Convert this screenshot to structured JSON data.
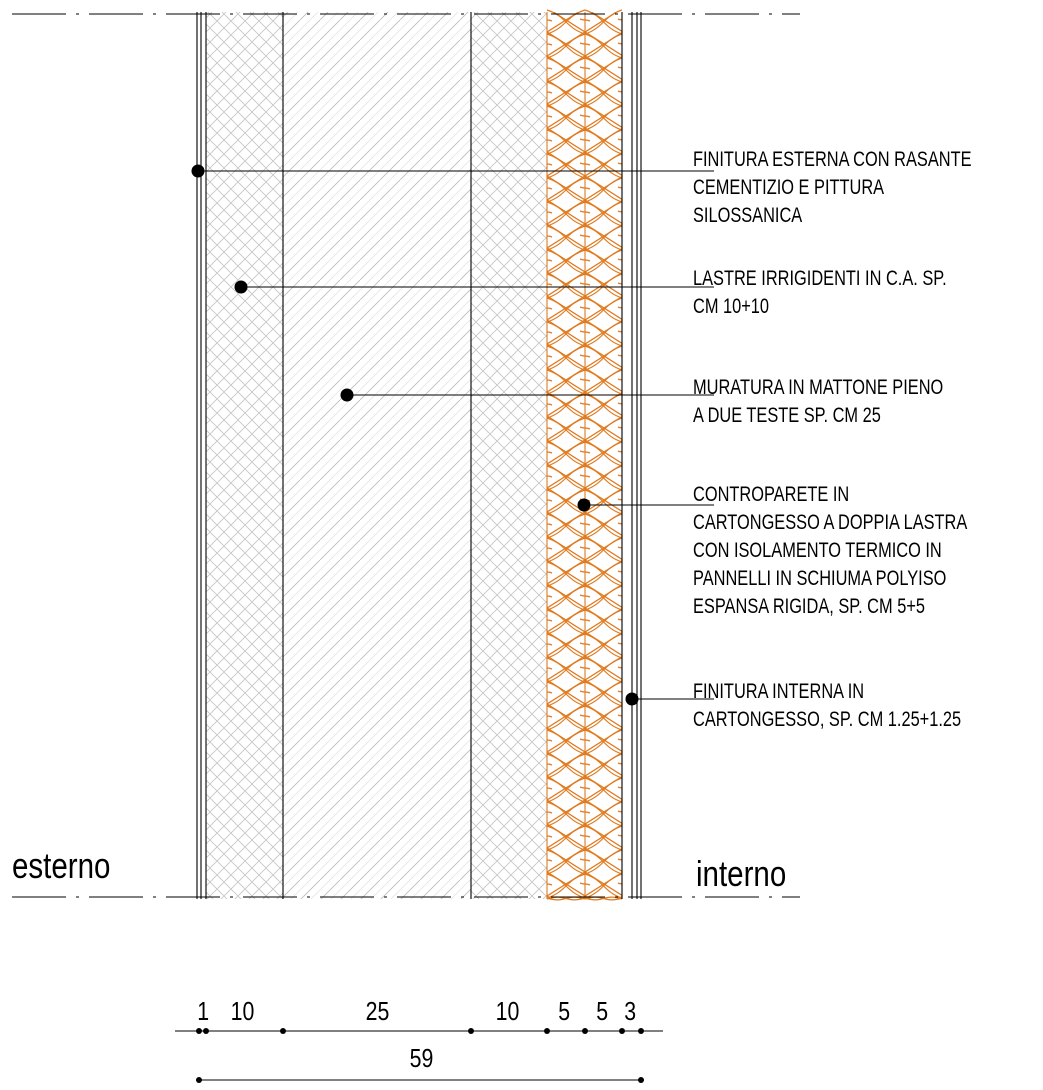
{
  "sides": {
    "exterior": "esterno",
    "interior": "interno"
  },
  "callouts": [
    {
      "id": "exterior-finish",
      "lines": [
        "FINITURA ESTERNA CON RASANTE",
        "CEMENTIZIO E PITTURA",
        "SILOSSANICA"
      ]
    },
    {
      "id": "stiffening-slabs",
      "lines": [
        "LASTRE IRRIGIDENTI IN C.A. SP.",
        "CM 10+10"
      ]
    },
    {
      "id": "masonry",
      "lines": [
        "MURATURA IN MATTONE PIENO",
        "A DUE TESTE SP. CM 25"
      ]
    },
    {
      "id": "counterwall",
      "lines": [
        "CONTROPARETE IN",
        "CARTONGESSO A DOPPIA LASTRA",
        "CON ISOLAMENTO TERMICO IN",
        "PANNELLI IN SCHIUMA POLYISO",
        "ESPANSA RIGIDA, SP. CM 5+5"
      ]
    },
    {
      "id": "interior-finish",
      "lines": [
        "FINITURA INTERNA IN",
        "CARTONGESSO, SP. CM 1.25+1.25"
      ]
    }
  ],
  "dimensions": {
    "partials": [
      "1",
      "10",
      "25",
      "10",
      "5",
      "5",
      "3"
    ],
    "total": "59"
  },
  "colors": {
    "line": "#000000",
    "hatch": "#bfbfbf",
    "insulation": "#e07a1f"
  }
}
